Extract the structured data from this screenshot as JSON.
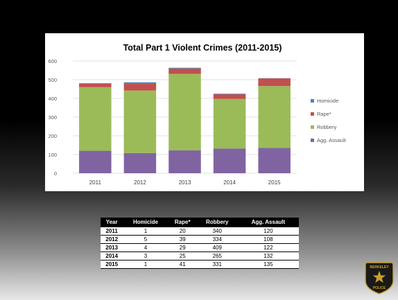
{
  "chart_data": {
    "type": "bar",
    "stacked": true,
    "title": "Total Part 1 Violent Crimes (2011-2015)",
    "categories": [
      "2011",
      "2012",
      "2013",
      "2014",
      "2015"
    ],
    "series": [
      {
        "name": "Agg. Assault",
        "values": [
          120,
          108,
          122,
          132,
          135
        ],
        "color": "#8064a2"
      },
      {
        "name": "Robbery",
        "values": [
          340,
          334,
          409,
          265,
          331
        ],
        "color": "#9bbb59"
      },
      {
        "name": "Rape*",
        "values": [
          20,
          39,
          29,
          25,
          41
        ],
        "color": "#c0504d"
      },
      {
        "name": "Homicide",
        "values": [
          1,
          5,
          4,
          3,
          1
        ],
        "color": "#4f81bd"
      }
    ],
    "legend_order": [
      "Homicide",
      "Rape*",
      "Robbery",
      "Agg. Assault"
    ],
    "yticks": [
      0,
      100,
      200,
      300,
      400,
      500,
      600
    ],
    "ylim": [
      0,
      600
    ],
    "grid": true,
    "legend_position": "right"
  },
  "table": {
    "headers": [
      "Year",
      "Homicide",
      "Rape*",
      "Robbery",
      "Agg. Assault"
    ],
    "rows": [
      [
        "2011",
        "1",
        "20",
        "340",
        "120"
      ],
      [
        "2012",
        "5",
        "39",
        "334",
        "108"
      ],
      [
        "2013",
        "4",
        "29",
        "409",
        "122"
      ],
      [
        "2014",
        "3",
        "25",
        "265",
        "132"
      ],
      [
        "2015",
        "1",
        "41",
        "331",
        "135"
      ]
    ]
  },
  "badge": {
    "top_text": "BERKELEY",
    "bottom_text": "POLICE",
    "colors": {
      "shield": "#1a1a1a",
      "gold": "#c8a028"
    }
  }
}
